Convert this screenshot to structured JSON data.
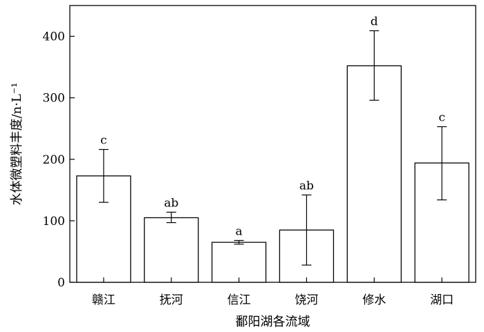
{
  "chart_data": {
    "type": "bar",
    "title": "",
    "xlabel": "鄱阳湖各流域",
    "ylabel": "水体微塑料丰度/n·L⁻¹",
    "categories": [
      "赣江",
      "抚河",
      "信江",
      "饶河",
      "修水",
      "湖口"
    ],
    "values": [
      173,
      105,
      65,
      85,
      352,
      194
    ],
    "error_low": [
      130,
      97,
      62,
      28,
      296,
      134
    ],
    "error_high": [
      216,
      114,
      68,
      142,
      409,
      253
    ],
    "significance": [
      "c",
      "ab",
      "a",
      "ab",
      "d",
      "c"
    ],
    "ylim": [
      0,
      450
    ],
    "yticks": [
      0,
      100,
      200,
      300,
      400
    ],
    "grid": false,
    "legend": false,
    "bar_fill": "#ffffff",
    "bar_stroke": "#000000"
  }
}
